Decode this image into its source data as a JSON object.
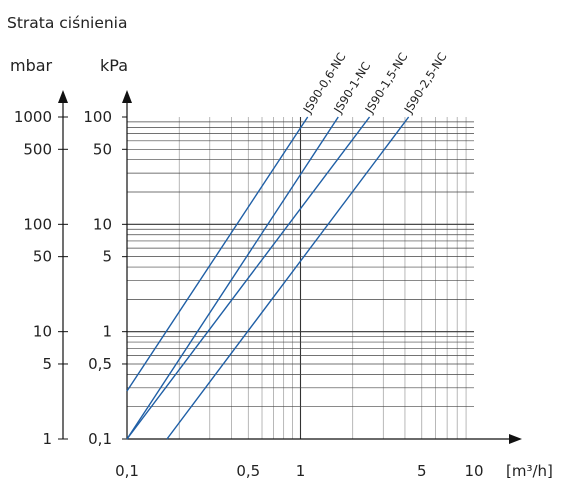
{
  "chart_data": {
    "type": "line",
    "title": "Strata ciśnienia",
    "y_units": {
      "left": "mbar",
      "right": "kPa"
    },
    "x_unit": "[m³/h]",
    "x_scale": "log",
    "y_scale": "log",
    "xlim": [
      0.1,
      10
    ],
    "ylim_kPa": [
      0.1,
      100
    ],
    "grid": true,
    "x_ticks": [
      {
        "value": 0.1,
        "label": "0,1"
      },
      {
        "value": 0.5,
        "label": "0,5"
      },
      {
        "value": 1,
        "label": "1"
      },
      {
        "value": 5,
        "label": "5"
      },
      {
        "value": 10,
        "label": "10"
      }
    ],
    "y_ticks_kPa": [
      {
        "value": 100,
        "label": "100"
      },
      {
        "value": 50,
        "label": "50"
      },
      {
        "value": 10,
        "label": "10"
      },
      {
        "value": 5,
        "label": "5"
      },
      {
        "value": 1,
        "label": "1"
      },
      {
        "value": 0.5,
        "label": "0,5"
      },
      {
        "value": 0.1,
        "label": "0,1"
      }
    ],
    "y_ticks_mbar": [
      {
        "value": 1000,
        "label": "1000"
      },
      {
        "value": 500,
        "label": "500"
      },
      {
        "value": 100,
        "label": "100"
      },
      {
        "value": 50,
        "label": "50"
      },
      {
        "value": 10,
        "label": "10"
      },
      {
        "value": 5,
        "label": "5"
      },
      {
        "value": 1,
        "label": "1"
      }
    ],
    "series_color": "#1f5fa6",
    "series": [
      {
        "name": "JS90-0,6-NC",
        "points": [
          [
            0.1,
            0.28
          ],
          [
            1.1,
            100
          ]
        ]
      },
      {
        "name": "JS90-1-NC",
        "points": [
          [
            0.1,
            0.1
          ],
          [
            1.65,
            100
          ]
        ]
      },
      {
        "name": "JS90-1,5-NC",
        "points": [
          [
            0.1,
            0.1
          ],
          [
            2.5,
            100
          ]
        ]
      },
      {
        "name": "JS90-2,5-NC",
        "points": [
          [
            0.17,
            0.1
          ],
          [
            4.2,
            100
          ]
        ]
      }
    ]
  }
}
